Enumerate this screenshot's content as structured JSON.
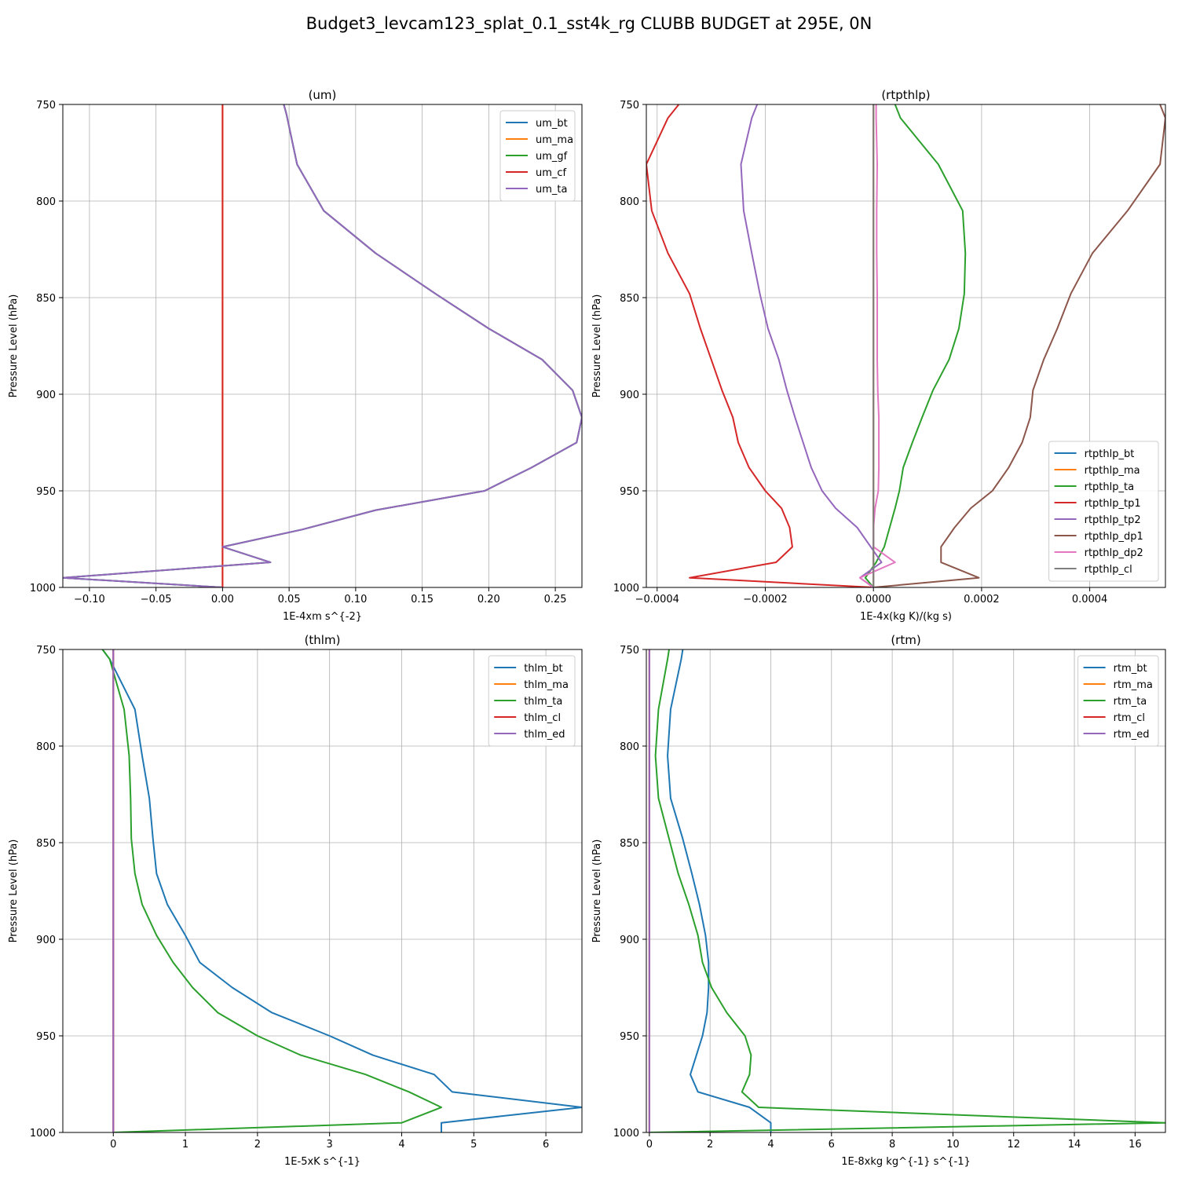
{
  "figure": {
    "title": "Budget3_levcam123_splat_0.1_sst4k_rg CLUBB BUDGET at 295E, 0N"
  },
  "chart_data": [
    {
      "type": "line",
      "title": "(um)",
      "xlabel": "1E-4xm s^{-2}",
      "ylabel": "Pressure Level (hPa)",
      "xlim": [
        -0.12,
        0.27
      ],
      "ylim": [
        1000,
        750
      ],
      "xticks": [
        -0.1,
        -0.05,
        0.0,
        0.05,
        0.1,
        0.15,
        0.2,
        0.25
      ],
      "xtick_labels": [
        "−0.10",
        "−0.05",
        "0.00",
        "0.05",
        "0.10",
        "0.15",
        "0.20",
        "0.25"
      ],
      "yticks": [
        750,
        800,
        850,
        900,
        950,
        1000
      ],
      "ytick_labels": [
        "750",
        "800",
        "850",
        "900",
        "950",
        "1000"
      ],
      "grid": true,
      "legend_loc": "upper-right",
      "levels": [
        750,
        755,
        781,
        805,
        827,
        848,
        866,
        882,
        898,
        912,
        925,
        938,
        950,
        960,
        970,
        979,
        987,
        995,
        1000
      ],
      "series": [
        {
          "name": "um_bt",
          "color": "#1f77b4",
          "values": [
            0.046,
            0.048,
            0.056,
            0.076,
            0.115,
            0.16,
            0.2,
            0.24,
            0.263,
            0.27,
            0.266,
            0.232,
            0.197,
            0.115,
            0.06,
            0.0,
            0.036,
            -0.12,
            0.0
          ]
        },
        {
          "name": "um_ma",
          "color": "#ff7f0e",
          "values": [
            0,
            0,
            0,
            0,
            0,
            0,
            0,
            0,
            0,
            0,
            0,
            0,
            0,
            0,
            0,
            0,
            0,
            0,
            0
          ]
        },
        {
          "name": "um_gf",
          "color": "#2ca02c",
          "values": [
            0.046,
            0.048,
            0.056,
            0.076,
            0.115,
            0.16,
            0.2,
            0.24,
            0.263,
            0.27,
            0.266,
            0.232,
            0.197,
            0.115,
            0.06,
            0.0,
            0.036,
            -0.12,
            0.0
          ]
        },
        {
          "name": "um_cf",
          "color": "#d62728",
          "values": [
            0,
            0,
            0,
            0,
            0,
            0,
            0,
            0,
            0,
            0,
            0,
            0,
            0,
            0,
            0,
            0,
            0,
            0,
            0
          ]
        },
        {
          "name": "um_ta",
          "color": "#9467bd",
          "values": [
            0.046,
            0.048,
            0.056,
            0.076,
            0.115,
            0.16,
            0.2,
            0.24,
            0.263,
            0.27,
            0.266,
            0.232,
            0.197,
            0.115,
            0.06,
            0.0,
            0.036,
            -0.12,
            0.0
          ]
        }
      ]
    },
    {
      "type": "line",
      "title": "(rtpthlp)",
      "xlabel": "1E-4x(kg K)/(kg s)",
      "ylabel": "Pressure Level (hPa)",
      "xlim": [
        -0.00042,
        0.00054
      ],
      "ylim": [
        1000,
        750
      ],
      "xticks": [
        -0.0004,
        -0.0002,
        0.0,
        0.0002,
        0.0004
      ],
      "xtick_labels": [
        "−0.0004",
        "−0.0002",
        "0.0000",
        "0.0002",
        "0.0004"
      ],
      "yticks": [
        750,
        800,
        850,
        900,
        950,
        1000
      ],
      "ytick_labels": [
        "750",
        "800",
        "850",
        "900",
        "950",
        "1000"
      ],
      "grid": true,
      "legend_loc": "lower-right",
      "levels": [
        750,
        757,
        781,
        805,
        827,
        848,
        866,
        882,
        898,
        912,
        925,
        938,
        950,
        959,
        969,
        979,
        987,
        995,
        1000
      ],
      "series": [
        {
          "name": "rtpthlp_bt",
          "color": "#1f77b4",
          "values": [
            0.0,
            0.0,
            0.0,
            0.0,
            0.0,
            0.0,
            0.0,
            0.0,
            0.0,
            0.0,
            0.0,
            0.0,
            0.0,
            0.0,
            0.0,
            0.0,
            0.0,
            0.0,
            0.0
          ]
        },
        {
          "name": "rtpthlp_ma",
          "color": "#ff7f0e",
          "values": [
            0.0,
            0.0,
            0.0,
            0.0,
            0.0,
            0.0,
            0.0,
            0.0,
            0.0,
            0.0,
            0.0,
            0.0,
            0.0,
            0.0,
            0.0,
            0.0,
            0.0,
            0.0,
            0.0
          ]
        },
        {
          "name": "rtpthlp_ta",
          "color": "#2ca02c",
          "values": [
            4e-05,
            5e-05,
            0.00012,
            0.000165,
            0.00017,
            0.000168,
            0.000158,
            0.00014,
            0.00011,
            9e-05,
            7.2e-05,
            5.5e-05,
            4.8e-05,
            4e-05,
            3e-05,
            2e-05,
            5e-06,
            -1.5e-05,
            0.0
          ]
        },
        {
          "name": "rtpthlp_tp1",
          "color": "#d62728",
          "values": [
            -0.00036,
            -0.00038,
            -0.00042,
            -0.00041,
            -0.00038,
            -0.00034,
            -0.00032,
            -0.0003,
            -0.00028,
            -0.00026,
            -0.00025,
            -0.00023,
            -0.0002,
            -0.00017,
            -0.000155,
            -0.00015,
            -0.00018,
            -0.00034,
            0.0
          ]
        },
        {
          "name": "rtpthlp_tp2",
          "color": "#9467bd",
          "values": [
            -0.000215,
            -0.000225,
            -0.000245,
            -0.00024,
            -0.000225,
            -0.00021,
            -0.000195,
            -0.000175,
            -0.00016,
            -0.000145,
            -0.00013,
            -0.000115,
            -9.5e-05,
            -7e-05,
            -3e-05,
            -5e-06,
            1.5e-05,
            -2.5e-05,
            0.0
          ]
        },
        {
          "name": "rtpthlp_dp1",
          "color": "#8c564b",
          "values": [
            0.00053,
            0.00054,
            0.00053,
            0.00047,
            0.000405,
            0.000365,
            0.00034,
            0.000315,
            0.000295,
            0.00029,
            0.000275,
            0.00025,
            0.00022,
            0.00018,
            0.00015,
            0.000125,
            0.000125,
            0.000195,
            0.0
          ]
        },
        {
          "name": "rtpthlp_dp2",
          "color": "#e377c2",
          "values": [
            5e-06,
            5e-06,
            7e-06,
            6e-06,
            6e-06,
            7e-06,
            7e-06,
            7e-06,
            8e-06,
            1e-05,
            1e-05,
            1e-05,
            9e-06,
            3e-06,
            0.0,
            0.0,
            4e-05,
            -2.5e-05,
            0.0
          ]
        },
        {
          "name": "rtpthlp_cl",
          "color": "#7f7f7f",
          "values": [
            0.0,
            0.0,
            0.0,
            0.0,
            0.0,
            0.0,
            0.0,
            0.0,
            0.0,
            0.0,
            0.0,
            0.0,
            0.0,
            0.0,
            0.0,
            0.0,
            0.0,
            0.0,
            0.0
          ]
        }
      ]
    },
    {
      "type": "line",
      "title": "(thlm)",
      "xlabel": "1E-5xK s^{-1}",
      "ylabel": "Pressure Level (hPa)",
      "xlim": [
        -0.7,
        6.5
      ],
      "ylim": [
        1000,
        750
      ],
      "xticks": [
        0,
        1,
        2,
        3,
        4,
        5,
        6
      ],
      "xtick_labels": [
        "0",
        "1",
        "2",
        "3",
        "4",
        "5",
        "6"
      ],
      "yticks": [
        750,
        800,
        850,
        900,
        950,
        1000
      ],
      "ytick_labels": [
        "750",
        "800",
        "850",
        "900",
        "950",
        "1000"
      ],
      "grid": true,
      "legend_loc": "upper-right",
      "levels": [
        750,
        755,
        781,
        805,
        827,
        848,
        866,
        882,
        898,
        912,
        925,
        938,
        950,
        960,
        970,
        979,
        987,
        995,
        1000
      ],
      "series": [
        {
          "name": "thlm_bt",
          "color": "#1f77b4",
          "values": [
            -0.15,
            -0.05,
            0.3,
            0.4,
            0.5,
            0.55,
            0.6,
            0.75,
            1.0,
            1.2,
            1.65,
            2.2,
            3.0,
            3.6,
            4.45,
            4.7,
            6.5,
            4.55,
            4.55
          ]
        },
        {
          "name": "thlm_ma",
          "color": "#ff7f0e",
          "values": [
            0.0,
            0.0,
            0.0,
            0.0,
            0.0,
            0.0,
            0.0,
            0.0,
            0.0,
            0.0,
            0.0,
            0.0,
            0.0,
            0.0,
            0.0,
            0.0,
            0.0,
            0.0,
            0.0
          ]
        },
        {
          "name": "thlm_ta",
          "color": "#2ca02c",
          "values": [
            -0.15,
            -0.05,
            0.15,
            0.22,
            0.24,
            0.25,
            0.3,
            0.4,
            0.6,
            0.83,
            1.1,
            1.45,
            2.0,
            2.6,
            3.5,
            4.1,
            4.55,
            4.0,
            0.0
          ]
        },
        {
          "name": "thlm_cl",
          "color": "#d62728",
          "values": [
            0.0,
            0.0,
            0.0,
            0.0,
            0.0,
            0.0,
            0.0,
            0.0,
            0.0,
            0.0,
            0.0,
            0.0,
            0.0,
            0.0,
            0.0,
            0.0,
            0.0,
            0.0,
            0.0
          ]
        },
        {
          "name": "thlm_ed",
          "color": "#9467bd",
          "values": [
            0.0,
            0.0,
            0.0,
            0.0,
            0.0,
            0.0,
            0.0,
            0.0,
            0.0,
            0.0,
            0.0,
            0.0,
            0.0,
            0.0,
            0.0,
            0.0,
            0.0,
            0.0,
            0.0
          ]
        }
      ]
    },
    {
      "type": "line",
      "title": "(rtm)",
      "xlabel": "1E-8xkg kg^{-1} s^{-1}",
      "ylabel": "Pressure Level (hPa)",
      "xlim": [
        -0.1,
        17
      ],
      "ylim": [
        1000,
        750
      ],
      "xticks": [
        0,
        2,
        4,
        6,
        8,
        10,
        12,
        14,
        16
      ],
      "xtick_labels": [
        "0",
        "2",
        "4",
        "6",
        "8",
        "10",
        "12",
        "14",
        "16"
      ],
      "yticks": [
        750,
        800,
        850,
        900,
        950,
        1000
      ],
      "ytick_labels": [
        "750",
        "800",
        "850",
        "900",
        "950",
        "1000"
      ],
      "grid": true,
      "legend_loc": "upper-right",
      "levels": [
        750,
        755,
        781,
        805,
        827,
        848,
        866,
        882,
        898,
        912,
        925,
        938,
        950,
        960,
        970,
        979,
        987,
        995,
        1000
      ],
      "series": [
        {
          "name": "rtm_bt",
          "color": "#1f77b4",
          "values": [
            1.1,
            1.05,
            0.7,
            0.6,
            0.7,
            1.1,
            1.4,
            1.65,
            1.85,
            1.95,
            1.95,
            1.9,
            1.75,
            1.55,
            1.35,
            1.6,
            3.3,
            4.0,
            4.0
          ]
        },
        {
          "name": "rtm_ma",
          "color": "#ff7f0e",
          "values": [
            0.0,
            0.0,
            0.0,
            0.0,
            0.0,
            0.0,
            0.0,
            0.0,
            0.0,
            0.0,
            0.0,
            0.0,
            0.0,
            0.0,
            0.0,
            0.0,
            0.0,
            0.0,
            0.0
          ]
        },
        {
          "name": "rtm_ta",
          "color": "#2ca02c",
          "values": [
            0.65,
            0.6,
            0.3,
            0.2,
            0.3,
            0.65,
            0.95,
            1.3,
            1.6,
            1.75,
            2.05,
            2.55,
            3.15,
            3.35,
            3.3,
            3.05,
            3.6,
            17.0,
            0.0
          ]
        },
        {
          "name": "rtm_cl",
          "color": "#d62728",
          "values": [
            0.0,
            0.0,
            0.0,
            0.0,
            0.0,
            0.0,
            0.0,
            0.0,
            0.0,
            0.0,
            0.0,
            0.0,
            0.0,
            0.0,
            0.0,
            0.0,
            0.0,
            0.0,
            0.0
          ]
        },
        {
          "name": "rtm_ed",
          "color": "#9467bd",
          "values": [
            0.0,
            0.0,
            0.0,
            0.0,
            0.0,
            0.0,
            0.0,
            0.0,
            0.0,
            0.0,
            0.0,
            0.0,
            0.0,
            0.0,
            0.0,
            0.0,
            0.0,
            0.0,
            0.0
          ]
        }
      ]
    }
  ]
}
